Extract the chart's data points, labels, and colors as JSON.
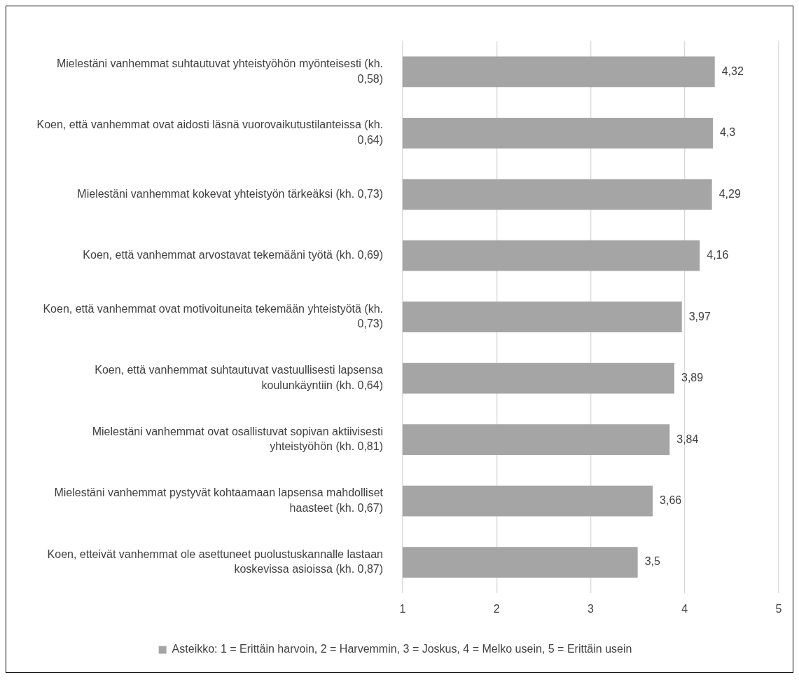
{
  "chart_data": {
    "type": "bar",
    "orientation": "horizontal",
    "categories": [
      "Mielestäni vanhemmat suhtautuvat yhteistyöhön myönteisesti (kh. 0,58)",
      "Koen, että vanhemmat ovat aidosti läsnä vuorovaikutustilanteissa (kh. 0,64)",
      "Mielestäni vanhemmat kokevat yhteistyön tärkeäksi (kh. 0,73)",
      "Koen, että vanhemmat arvostavat tekemääni työtä (kh. 0,69)",
      "Koen, että vanhemmat ovat motivoituneita tekemään yhteistyötä (kh. 0,73)",
      "Koen, että vanhemmat suhtautuvat vastuullisesti lapsensa koulunkäyntiin (kh. 0,64)",
      "Mielestäni vanhemmat ovat osallistuvat sopivan aktiivisesti yhteistyöhön (kh. 0,81)",
      "Mielestäni vanhemmat pystyvät kohtaamaan lapsensa mahdolliset haasteet (kh. 0,67)",
      "Koen, etteivät vanhemmat ole asettuneet puolustuskannalle lastaan koskevissa asioissa (kh. 0,87)"
    ],
    "series": [
      {
        "name": "Asteikko: 1 = Erittäin harvoin, 2 = Harvemmin, 3 = Joskus, 4 = Melko usein, 5 = Erittäin usein",
        "color": "#a5a5a5",
        "values": [
          4.32,
          4.3,
          4.29,
          4.16,
          3.97,
          3.89,
          3.84,
          3.66,
          3.5
        ],
        "value_labels": [
          "4,32",
          "4,3",
          "4,29",
          "4,16",
          "3,97",
          "3,89",
          "3,84",
          "3,66",
          "3,5"
        ]
      }
    ],
    "xlim": [
      1,
      5
    ],
    "xticks": [
      1,
      2,
      3,
      4,
      5
    ],
    "grid": "x",
    "legend": "bottom"
  }
}
